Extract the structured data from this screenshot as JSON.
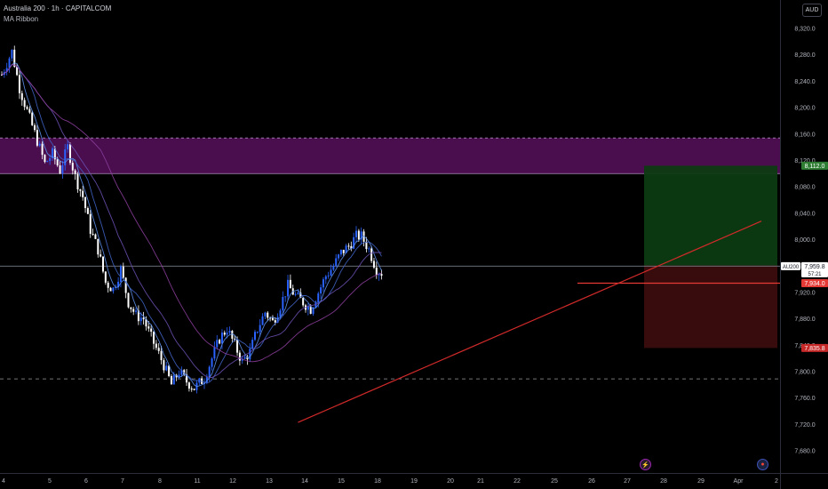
{
  "header": {
    "title": "Australia 200 · 1h · CAPITALCOM",
    "indicator": "MA Ribbon"
  },
  "currency_button": "AUD",
  "colors": {
    "background": "#000000",
    "candle_up": "#2962ff",
    "candle_down": "#ffffff",
    "supply_zone": "#4a0e4e",
    "supply_zone_border": "#b08cc0",
    "target_zone": "#0d3b12",
    "stop_zone": "#3b0d0d",
    "trendline": "#d12a2a",
    "ribbon": [
      "#5d8ee8",
      "#3f63c4",
      "#6a4fb0",
      "#8a3d9a"
    ],
    "axis_text": "#b2b5be"
  },
  "event_icons": [
    {
      "name": "lightning-event-icon",
      "symbol": "⚡"
    },
    {
      "name": "flag-event-icon",
      "symbol": "●"
    }
  ],
  "chart_data": {
    "type": "candlestick",
    "symbol": "AU200",
    "interval": "1h",
    "ylim": [
      7660,
      8340
    ],
    "y_ticks": [
      7680,
      7720,
      7760,
      7800,
      7840,
      7880,
      7920,
      7960,
      8000,
      8040,
      8080,
      8120,
      8160,
      8200,
      8240,
      8280,
      8320
    ],
    "y_tick_labels": [
      "7,680.0",
      "7,720.0",
      "7,760.0",
      "7,800.0",
      "7,840.0",
      "7,880.0",
      "7,920.0",
      "7,960.0",
      "8,000.0",
      "8,040.0",
      "8,080.0",
      "8,120.0",
      "8,160.0",
      "8,200.0",
      "8,240.0",
      "8,280.0",
      "8,320.0"
    ],
    "x_ticks": [
      "4",
      "5",
      "6",
      "7",
      "8",
      "11",
      "12",
      "13",
      "14",
      "15",
      "18",
      "19",
      "20",
      "21",
      "22",
      "25",
      "26",
      "27",
      "28",
      "29",
      "Apr",
      "2"
    ],
    "price_path": [
      [
        0,
        8250
      ],
      [
        4,
        8285
      ],
      [
        7,
        8230
      ],
      [
        10,
        8195
      ],
      [
        14,
        8150
      ],
      [
        17,
        8115
      ],
      [
        20,
        8130
      ],
      [
        23,
        8105
      ],
      [
        26,
        8140
      ],
      [
        29,
        8095
      ],
      [
        32,
        8065
      ],
      [
        35,
        8015
      ],
      [
        38,
        7985
      ],
      [
        41,
        7935
      ],
      [
        44,
        7925
      ],
      [
        47,
        7955
      ],
      [
        50,
        7905
      ],
      [
        53,
        7885
      ],
      [
        56,
        7880
      ],
      [
        58,
        7860
      ],
      [
        61,
        7835
      ],
      [
        64,
        7810
      ],
      [
        67,
        7780
      ],
      [
        70,
        7800
      ],
      [
        73,
        7785
      ],
      [
        76,
        7775
      ],
      [
        80,
        7790
      ],
      [
        83,
        7820
      ],
      [
        86,
        7850
      ],
      [
        89,
        7865
      ],
      [
        92,
        7840
      ],
      [
        95,
        7815
      ],
      [
        98,
        7830
      ],
      [
        101,
        7865
      ],
      [
        104,
        7890
      ],
      [
        107,
        7875
      ],
      [
        110,
        7900
      ],
      [
        113,
        7930
      ],
      [
        116,
        7915
      ],
      [
        119,
        7905
      ],
      [
        122,
        7895
      ],
      [
        125,
        7920
      ],
      [
        128,
        7945
      ],
      [
        131,
        7960
      ],
      [
        134,
        7980
      ],
      [
        137,
        7990
      ],
      [
        140,
        8005
      ],
      [
        142,
        8005
      ],
      [
        145,
        7985
      ],
      [
        148,
        7955
      ],
      [
        150,
        7950
      ]
    ],
    "horizontal_levels": [
      {
        "label": "AU200",
        "price": 7959.8,
        "price_label": "7,959.8",
        "countdown": "57:21",
        "style": "solid-gray"
      },
      {
        "label": "",
        "price": 7960.8,
        "price_label": "7,960.8",
        "style": "tag-only"
      },
      {
        "label": "",
        "price": 7934.0,
        "price_label": "7,934.0",
        "style": "red"
      },
      {
        "label": "",
        "price": 7789.0,
        "price_label": "",
        "style": "dashed-white"
      }
    ],
    "supply_zone": {
      "top": 8154,
      "bottom": 8100
    },
    "position": {
      "entry": 7960.8,
      "target": 8112.0,
      "target_label": "8,112.0",
      "stop": 7835.8,
      "stop_label": "7,835.8"
    },
    "trendline": {
      "from": [
        117,
        7723
      ],
      "to": [
        300,
        8028
      ]
    },
    "price_tag_labels": {
      "last": "AU200"
    }
  }
}
